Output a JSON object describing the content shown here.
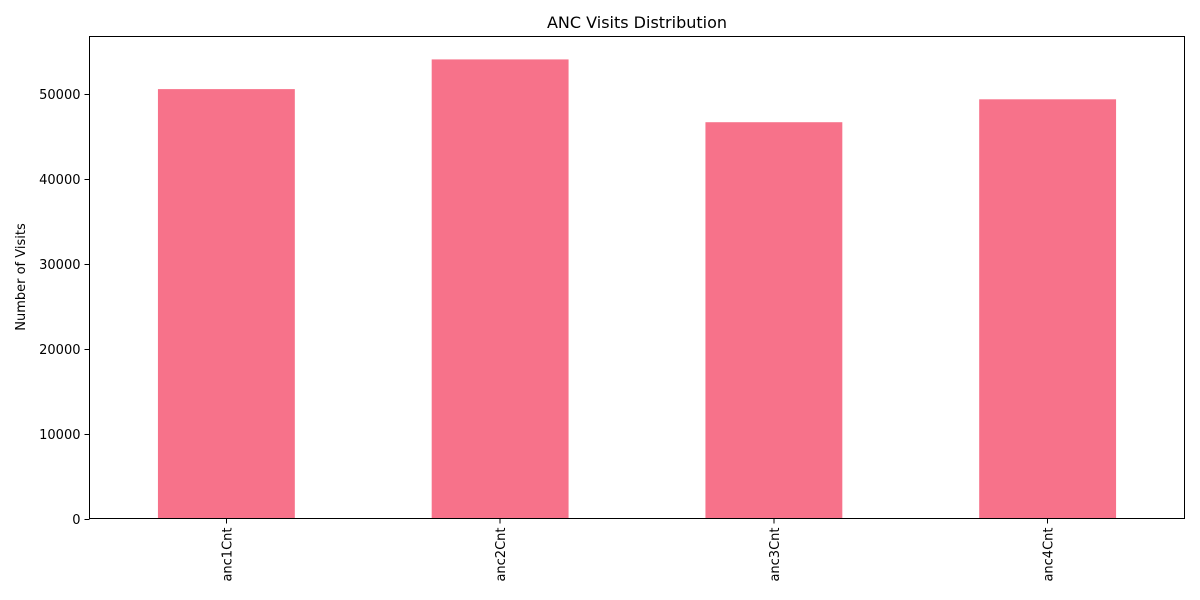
{
  "chart_data": {
    "type": "bar",
    "title": "ANC Visits Distribution",
    "xlabel": "",
    "ylabel": "Number of Visits",
    "categories": [
      "anc1Cnt",
      "anc2Cnt",
      "anc3Cnt",
      "anc4Cnt"
    ],
    "values": [
      50600,
      54100,
      46700,
      49400
    ],
    "ylim": [
      0,
      56800
    ],
    "yticks": [
      0,
      10000,
      20000,
      30000,
      40000,
      50000
    ],
    "ytick_labels": [
      "0",
      "10000",
      "20000",
      "30000",
      "40000",
      "50000"
    ],
    "bar_color": "#f7728a",
    "grid": false,
    "legend": "none"
  }
}
